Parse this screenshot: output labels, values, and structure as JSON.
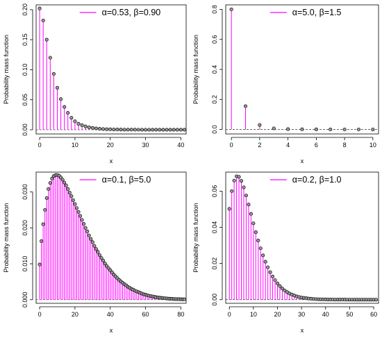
{
  "figure": {
    "background": "#ffffff",
    "stem_color": "#ff00ff",
    "point_fill": "#9a9a9a",
    "point_stroke": "#000000"
  },
  "chart_data": [
    {
      "type": "bar",
      "style": "stem plot with circle markers",
      "ylabel": "Probability mass function",
      "xlabel": "x",
      "legend": "α=0.53, β=0.90",
      "legend_position": "top-right",
      "xlim": [
        -1,
        41.5
      ],
      "ylim": [
        -0.007,
        0.208
      ],
      "xticks": [
        0,
        10,
        20,
        30,
        40
      ],
      "yticks": [
        0.0,
        0.05,
        0.1,
        0.15,
        0.2
      ],
      "ytick_labels": [
        "0.00",
        "0.05",
        "0.10",
        "0.15",
        "0.20"
      ],
      "x": [
        0,
        1,
        2,
        3,
        4,
        5,
        6,
        7,
        8,
        9,
        10,
        11,
        12,
        13,
        14,
        15,
        16,
        17,
        18,
        19,
        20,
        21,
        22,
        23,
        24,
        25,
        26,
        27,
        28,
        29,
        30,
        31,
        32,
        33,
        34,
        35,
        36,
        37,
        38,
        39,
        40,
        41
      ],
      "values": [
        0.202,
        0.182,
        0.15,
        0.12,
        0.093,
        0.07,
        0.051,
        0.038,
        0.028,
        0.02,
        0.014,
        0.01,
        0.0075,
        0.0055,
        0.004,
        0.003,
        0.0022,
        0.0016,
        0.0012,
        0.0009,
        0.0007,
        0.0005,
        0.0004,
        0.0003,
        0.0002,
        0.00015,
        0.0001,
        0.0001,
        8e-05,
        6e-05,
        5e-05,
        4e-05,
        3e-05,
        2e-05,
        2e-05,
        1e-05,
        1e-05,
        1e-05,
        1e-05,
        0,
        0,
        0
      ]
    },
    {
      "type": "bar",
      "style": "stem plot with circle markers",
      "ylabel": "Probability mass function",
      "xlabel": "x",
      "legend": "α=5.0, β=1.5",
      "legend_position": "top-right",
      "xlim": [
        -0.4,
        10.4
      ],
      "ylim": [
        -0.03,
        0.83
      ],
      "xticks": [
        0,
        2,
        4,
        6,
        8,
        10
      ],
      "yticks": [
        0.0,
        0.2,
        0.4,
        0.6,
        0.8
      ],
      "ytick_labels": [
        "0.0",
        "0.2",
        "0.4",
        "0.6",
        "0.8"
      ],
      "x": [
        0,
        1,
        2,
        3,
        4,
        5,
        6,
        7,
        8,
        9,
        10
      ],
      "values": [
        0.8,
        0.155,
        0.03,
        0.007,
        0.002,
        0.0008,
        0.0003,
        0.0001,
        5e-05,
        2e-05,
        1e-05
      ]
    },
    {
      "type": "bar",
      "style": "stem plot with circle markers",
      "ylabel": "Probability mass function",
      "xlabel": "x",
      "legend": "α=0.1, β=5.0",
      "legend_position": "top-right",
      "xlim": [
        -2,
        83
      ],
      "ylim": [
        -0.001,
        0.0355
      ],
      "xticks": [
        0,
        20,
        40,
        60,
        80
      ],
      "yticks": [
        0.0,
        0.01,
        0.02,
        0.03
      ],
      "ytick_labels": [
        "0.000",
        "0.010",
        "0.020",
        "0.030"
      ],
      "x_range": [
        0,
        82
      ],
      "values": [
        0.0098,
        0.0163,
        0.021,
        0.025,
        0.0283,
        0.0308,
        0.0325,
        0.0337,
        0.0344,
        0.0347,
        0.0347,
        0.0345,
        0.034,
        0.0334,
        0.0326,
        0.0318,
        0.0308,
        0.0298,
        0.0288,
        0.0277,
        0.0266,
        0.0255,
        0.0244,
        0.0233,
        0.0222,
        0.0211,
        0.02,
        0.019,
        0.0179,
        0.0169,
        0.016,
        0.015,
        0.0141,
        0.0133,
        0.0124,
        0.0116,
        0.0109,
        0.0101,
        0.0094,
        0.0088,
        0.0082,
        0.0076,
        0.007,
        0.0065,
        0.006,
        0.0055,
        0.0051,
        0.0047,
        0.0043,
        0.004,
        0.0036,
        0.0033,
        0.003,
        0.0028,
        0.0025,
        0.0023,
        0.0021,
        0.0019,
        0.0017,
        0.0015,
        0.0014,
        0.0012,
        0.0011,
        0.001,
        0.0009,
        0.0008,
        0.0007,
        0.0006,
        0.00055,
        0.0005,
        0.00045,
        0.0004,
        0.00035,
        0.0003,
        0.00027,
        0.00024,
        0.0002,
        0.00018,
        0.00016,
        0.00014,
        0.00012,
        0.0001,
        9e-05
      ]
    },
    {
      "type": "bar",
      "style": "stem plot with circle markers",
      "ylabel": "Probability mass function",
      "xlabel": "x",
      "legend": "α=0.2, β=1.0",
      "legend_position": "top-right",
      "xlim": [
        -1.5,
        62
      ],
      "ylim": [
        -0.002,
        0.0705
      ],
      "xticks": [
        0,
        10,
        20,
        30,
        40,
        50,
        60
      ],
      "yticks": [
        0.0,
        0.02,
        0.04,
        0.06
      ],
      "ytick_labels": [
        "0.00",
        "0.02",
        "0.04",
        "0.06"
      ],
      "x_range": [
        0,
        62
      ],
      "values": [
        0.0502,
        0.06,
        0.0658,
        0.0682,
        0.0679,
        0.0657,
        0.0621,
        0.0576,
        0.0526,
        0.0474,
        0.0422,
        0.0373,
        0.0327,
        0.0284,
        0.0245,
        0.021,
        0.0179,
        0.0152,
        0.0128,
        0.0108,
        0.009,
        0.0075,
        0.0062,
        0.0051,
        0.0042,
        0.0034,
        0.0028,
        0.0023,
        0.0018,
        0.0015,
        0.0012,
        0.001,
        0.0008,
        0.0006,
        0.0005,
        0.0004,
        0.0003,
        0.00025,
        0.0002,
        0.00016,
        0.00013,
        0.0001,
        8e-05,
        6e-05,
        5e-05,
        4e-05,
        3e-05,
        2e-05,
        2e-05,
        1e-05,
        1e-05,
        1e-05,
        1e-05,
        0,
        0,
        0,
        0,
        0,
        0,
        0,
        0,
        0,
        0
      ]
    }
  ]
}
